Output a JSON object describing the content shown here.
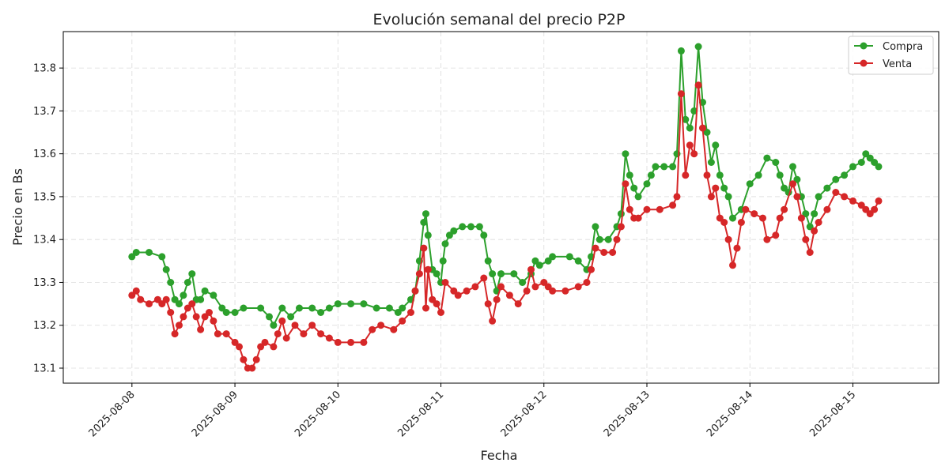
{
  "chart_data": {
    "type": "line",
    "title": "Evolución semanal del precio P2P",
    "xlabel": "Fecha",
    "ylabel": "Precio en Bs",
    "grid": true,
    "legend_position": "top-right",
    "x_range": [
      "2025-08-07 08:00",
      "2025-08-15 20:00"
    ],
    "ylim": [
      13.065,
      13.885
    ],
    "x_ticks": [
      "2025-08-08",
      "2025-08-09",
      "2025-08-10",
      "2025-08-11",
      "2025-08-12",
      "2025-08-13",
      "2025-08-14",
      "2025-08-15"
    ],
    "y_ticks": [
      13.1,
      13.2,
      13.3,
      13.4,
      13.5,
      13.6,
      13.7,
      13.8
    ],
    "series": [
      {
        "name": "Compra",
        "color": "#2ca02c",
        "points": [
          [
            "2025-08-08 00:00",
            13.36
          ],
          [
            "2025-08-08 01:00",
            13.37
          ],
          [
            "2025-08-08 04:00",
            13.37
          ],
          [
            "2025-08-08 07:00",
            13.36
          ],
          [
            "2025-08-08 08:00",
            13.33
          ],
          [
            "2025-08-08 09:00",
            13.3
          ],
          [
            "2025-08-08 10:00",
            13.26
          ],
          [
            "2025-08-08 11:00",
            13.25
          ],
          [
            "2025-08-08 12:00",
            13.27
          ],
          [
            "2025-08-08 13:00",
            13.3
          ],
          [
            "2025-08-08 14:00",
            13.32
          ],
          [
            "2025-08-08 15:00",
            13.26
          ],
          [
            "2025-08-08 16:00",
            13.26
          ],
          [
            "2025-08-08 17:00",
            13.28
          ],
          [
            "2025-08-08 19:00",
            13.27
          ],
          [
            "2025-08-08 21:00",
            13.24
          ],
          [
            "2025-08-08 22:00",
            13.23
          ],
          [
            "2025-08-09 00:00",
            13.23
          ],
          [
            "2025-08-09 02:00",
            13.24
          ],
          [
            "2025-08-09 06:00",
            13.24
          ],
          [
            "2025-08-09 08:00",
            13.22
          ],
          [
            "2025-08-09 09:00",
            13.2
          ],
          [
            "2025-08-09 11:00",
            13.24
          ],
          [
            "2025-08-09 13:00",
            13.22
          ],
          [
            "2025-08-09 15:00",
            13.24
          ],
          [
            "2025-08-09 18:00",
            13.24
          ],
          [
            "2025-08-09 20:00",
            13.23
          ],
          [
            "2025-08-09 22:00",
            13.24
          ],
          [
            "2025-08-10 00:00",
            13.25
          ],
          [
            "2025-08-10 03:00",
            13.25
          ],
          [
            "2025-08-10 06:00",
            13.25
          ],
          [
            "2025-08-10 09:00",
            13.24
          ],
          [
            "2025-08-10 12:00",
            13.24
          ],
          [
            "2025-08-10 14:00",
            13.23
          ],
          [
            "2025-08-10 15:00",
            13.24
          ],
          [
            "2025-08-10 17:00",
            13.26
          ],
          [
            "2025-08-10 18:00",
            13.28
          ],
          [
            "2025-08-10 19:00",
            13.35
          ],
          [
            "2025-08-10 20:00",
            13.44
          ],
          [
            "2025-08-10 20:30",
            13.46
          ],
          [
            "2025-08-10 21:00",
            13.41
          ],
          [
            "2025-08-10 22:00",
            13.33
          ],
          [
            "2025-08-10 23:00",
            13.32
          ],
          [
            "2025-08-11 00:00",
            13.3
          ],
          [
            "2025-08-11 00:30",
            13.35
          ],
          [
            "2025-08-11 01:00",
            13.39
          ],
          [
            "2025-08-11 02:00",
            13.41
          ],
          [
            "2025-08-11 03:00",
            13.42
          ],
          [
            "2025-08-11 05:00",
            13.43
          ],
          [
            "2025-08-11 07:00",
            13.43
          ],
          [
            "2025-08-11 09:00",
            13.43
          ],
          [
            "2025-08-11 10:00",
            13.41
          ],
          [
            "2025-08-11 11:00",
            13.35
          ],
          [
            "2025-08-11 12:00",
            13.32
          ],
          [
            "2025-08-11 13:00",
            13.28
          ],
          [
            "2025-08-11 14:00",
            13.32
          ],
          [
            "2025-08-11 17:00",
            13.32
          ],
          [
            "2025-08-11 19:00",
            13.3
          ],
          [
            "2025-08-11 21:00",
            13.32
          ],
          [
            "2025-08-11 22:00",
            13.35
          ],
          [
            "2025-08-11 23:00",
            13.34
          ],
          [
            "2025-08-12 01:00",
            13.35
          ],
          [
            "2025-08-12 02:00",
            13.36
          ],
          [
            "2025-08-12 06:00",
            13.36
          ],
          [
            "2025-08-12 08:00",
            13.35
          ],
          [
            "2025-08-12 10:00",
            13.33
          ],
          [
            "2025-08-12 11:00",
            13.36
          ],
          [
            "2025-08-12 12:00",
            13.43
          ],
          [
            "2025-08-12 13:00",
            13.4
          ],
          [
            "2025-08-12 15:00",
            13.4
          ],
          [
            "2025-08-12 17:00",
            13.43
          ],
          [
            "2025-08-12 18:00",
            13.46
          ],
          [
            "2025-08-12 19:00",
            13.6
          ],
          [
            "2025-08-12 20:00",
            13.55
          ],
          [
            "2025-08-12 21:00",
            13.52
          ],
          [
            "2025-08-12 22:00",
            13.5
          ],
          [
            "2025-08-13 00:00",
            13.53
          ],
          [
            "2025-08-13 01:00",
            13.55
          ],
          [
            "2025-08-13 02:00",
            13.57
          ],
          [
            "2025-08-13 04:00",
            13.57
          ],
          [
            "2025-08-13 06:00",
            13.57
          ],
          [
            "2025-08-13 07:00",
            13.6
          ],
          [
            "2025-08-13 08:00",
            13.84
          ],
          [
            "2025-08-13 09:00",
            13.68
          ],
          [
            "2025-08-13 10:00",
            13.66
          ],
          [
            "2025-08-13 11:00",
            13.7
          ],
          [
            "2025-08-13 12:00",
            13.85
          ],
          [
            "2025-08-13 13:00",
            13.72
          ],
          [
            "2025-08-13 14:00",
            13.65
          ],
          [
            "2025-08-13 15:00",
            13.58
          ],
          [
            "2025-08-13 16:00",
            13.62
          ],
          [
            "2025-08-13 17:00",
            13.55
          ],
          [
            "2025-08-13 18:00",
            13.52
          ],
          [
            "2025-08-13 19:00",
            13.5
          ],
          [
            "2025-08-13 20:00",
            13.45
          ],
          [
            "2025-08-13 22:00",
            13.47
          ],
          [
            "2025-08-14 00:00",
            13.53
          ],
          [
            "2025-08-14 02:00",
            13.55
          ],
          [
            "2025-08-14 04:00",
            13.59
          ],
          [
            "2025-08-14 06:00",
            13.58
          ],
          [
            "2025-08-14 07:00",
            13.55
          ],
          [
            "2025-08-14 08:00",
            13.52
          ],
          [
            "2025-08-14 09:00",
            13.51
          ],
          [
            "2025-08-14 10:00",
            13.57
          ],
          [
            "2025-08-14 11:00",
            13.54
          ],
          [
            "2025-08-14 12:00",
            13.5
          ],
          [
            "2025-08-14 13:00",
            13.46
          ],
          [
            "2025-08-14 14:00",
            13.43
          ],
          [
            "2025-08-14 15:00",
            13.46
          ],
          [
            "2025-08-14 16:00",
            13.5
          ],
          [
            "2025-08-14 18:00",
            13.52
          ],
          [
            "2025-08-14 20:00",
            13.54
          ],
          [
            "2025-08-14 22:00",
            13.55
          ],
          [
            "2025-08-15 00:00",
            13.57
          ],
          [
            "2025-08-15 02:00",
            13.58
          ],
          [
            "2025-08-15 03:00",
            13.6
          ],
          [
            "2025-08-15 04:00",
            13.59
          ],
          [
            "2025-08-15 05:00",
            13.58
          ],
          [
            "2025-08-15 06:00",
            13.57
          ]
        ]
      },
      {
        "name": "Venta",
        "color": "#d62728",
        "points": [
          [
            "2025-08-08 00:00",
            13.27
          ],
          [
            "2025-08-08 01:00",
            13.28
          ],
          [
            "2025-08-08 02:00",
            13.26
          ],
          [
            "2025-08-08 04:00",
            13.25
          ],
          [
            "2025-08-08 06:00",
            13.26
          ],
          [
            "2025-08-08 07:00",
            13.25
          ],
          [
            "2025-08-08 08:00",
            13.26
          ],
          [
            "2025-08-08 09:00",
            13.23
          ],
          [
            "2025-08-08 10:00",
            13.18
          ],
          [
            "2025-08-08 11:00",
            13.2
          ],
          [
            "2025-08-08 12:00",
            13.22
          ],
          [
            "2025-08-08 13:00",
            13.24
          ],
          [
            "2025-08-08 14:00",
            13.25
          ],
          [
            "2025-08-08 15:00",
            13.22
          ],
          [
            "2025-08-08 16:00",
            13.19
          ],
          [
            "2025-08-08 17:00",
            13.22
          ],
          [
            "2025-08-08 18:00",
            13.23
          ],
          [
            "2025-08-08 19:00",
            13.21
          ],
          [
            "2025-08-08 20:00",
            13.18
          ],
          [
            "2025-08-08 22:00",
            13.18
          ],
          [
            "2025-08-09 00:00",
            13.16
          ],
          [
            "2025-08-09 01:00",
            13.15
          ],
          [
            "2025-08-09 02:00",
            13.12
          ],
          [
            "2025-08-09 03:00",
            13.1
          ],
          [
            "2025-08-09 04:00",
            13.1
          ],
          [
            "2025-08-09 05:00",
            13.12
          ],
          [
            "2025-08-09 06:00",
            13.15
          ],
          [
            "2025-08-09 07:00",
            13.16
          ],
          [
            "2025-08-09 09:00",
            13.15
          ],
          [
            "2025-08-09 10:00",
            13.18
          ],
          [
            "2025-08-09 11:00",
            13.21
          ],
          [
            "2025-08-09 12:00",
            13.17
          ],
          [
            "2025-08-09 14:00",
            13.2
          ],
          [
            "2025-08-09 16:00",
            13.18
          ],
          [
            "2025-08-09 18:00",
            13.2
          ],
          [
            "2025-08-09 20:00",
            13.18
          ],
          [
            "2025-08-09 22:00",
            13.17
          ],
          [
            "2025-08-10 00:00",
            13.16
          ],
          [
            "2025-08-10 03:00",
            13.16
          ],
          [
            "2025-08-10 06:00",
            13.16
          ],
          [
            "2025-08-10 08:00",
            13.19
          ],
          [
            "2025-08-10 10:00",
            13.2
          ],
          [
            "2025-08-10 13:00",
            13.19
          ],
          [
            "2025-08-10 15:00",
            13.21
          ],
          [
            "2025-08-10 17:00",
            13.23
          ],
          [
            "2025-08-10 18:00",
            13.28
          ],
          [
            "2025-08-10 19:00",
            13.32
          ],
          [
            "2025-08-10 20:00",
            13.38
          ],
          [
            "2025-08-10 20:30",
            13.24
          ],
          [
            "2025-08-10 21:00",
            13.33
          ],
          [
            "2025-08-10 22:00",
            13.26
          ],
          [
            "2025-08-10 23:00",
            13.25
          ],
          [
            "2025-08-11 00:00",
            13.23
          ],
          [
            "2025-08-11 01:00",
            13.3
          ],
          [
            "2025-08-11 03:00",
            13.28
          ],
          [
            "2025-08-11 04:00",
            13.27
          ],
          [
            "2025-08-11 06:00",
            13.28
          ],
          [
            "2025-08-11 08:00",
            13.29
          ],
          [
            "2025-08-11 10:00",
            13.31
          ],
          [
            "2025-08-11 11:00",
            13.25
          ],
          [
            "2025-08-11 12:00",
            13.21
          ],
          [
            "2025-08-11 13:00",
            13.26
          ],
          [
            "2025-08-11 14:00",
            13.29
          ],
          [
            "2025-08-11 16:00",
            13.27
          ],
          [
            "2025-08-11 18:00",
            13.25
          ],
          [
            "2025-08-11 20:00",
            13.28
          ],
          [
            "2025-08-11 21:00",
            13.33
          ],
          [
            "2025-08-11 22:00",
            13.29
          ],
          [
            "2025-08-12 00:00",
            13.3
          ],
          [
            "2025-08-12 01:00",
            13.29
          ],
          [
            "2025-08-12 02:00",
            13.28
          ],
          [
            "2025-08-12 05:00",
            13.28
          ],
          [
            "2025-08-12 08:00",
            13.29
          ],
          [
            "2025-08-12 10:00",
            13.3
          ],
          [
            "2025-08-12 11:00",
            13.33
          ],
          [
            "2025-08-12 12:00",
            13.38
          ],
          [
            "2025-08-12 14:00",
            13.37
          ],
          [
            "2025-08-12 16:00",
            13.37
          ],
          [
            "2025-08-12 17:00",
            13.4
          ],
          [
            "2025-08-12 18:00",
            13.43
          ],
          [
            "2025-08-12 19:00",
            13.53
          ],
          [
            "2025-08-12 20:00",
            13.47
          ],
          [
            "2025-08-12 21:00",
            13.45
          ],
          [
            "2025-08-12 22:00",
            13.45
          ],
          [
            "2025-08-13 00:00",
            13.47
          ],
          [
            "2025-08-13 03:00",
            13.47
          ],
          [
            "2025-08-13 06:00",
            13.48
          ],
          [
            "2025-08-13 07:00",
            13.5
          ],
          [
            "2025-08-13 08:00",
            13.74
          ],
          [
            "2025-08-13 09:00",
            13.55
          ],
          [
            "2025-08-13 10:00",
            13.62
          ],
          [
            "2025-08-13 11:00",
            13.6
          ],
          [
            "2025-08-13 12:00",
            13.76
          ],
          [
            "2025-08-13 13:00",
            13.66
          ],
          [
            "2025-08-13 14:00",
            13.55
          ],
          [
            "2025-08-13 15:00",
            13.5
          ],
          [
            "2025-08-13 16:00",
            13.52
          ],
          [
            "2025-08-13 17:00",
            13.45
          ],
          [
            "2025-08-13 18:00",
            13.44
          ],
          [
            "2025-08-13 19:00",
            13.4
          ],
          [
            "2025-08-13 20:00",
            13.34
          ],
          [
            "2025-08-13 21:00",
            13.38
          ],
          [
            "2025-08-13 22:00",
            13.44
          ],
          [
            "2025-08-13 23:00",
            13.47
          ],
          [
            "2025-08-14 01:00",
            13.46
          ],
          [
            "2025-08-14 03:00",
            13.45
          ],
          [
            "2025-08-14 04:00",
            13.4
          ],
          [
            "2025-08-14 06:00",
            13.41
          ],
          [
            "2025-08-14 07:00",
            13.45
          ],
          [
            "2025-08-14 08:00",
            13.47
          ],
          [
            "2025-08-14 10:00",
            13.53
          ],
          [
            "2025-08-14 11:00",
            13.5
          ],
          [
            "2025-08-14 12:00",
            13.45
          ],
          [
            "2025-08-14 13:00",
            13.4
          ],
          [
            "2025-08-14 14:00",
            13.37
          ],
          [
            "2025-08-14 15:00",
            13.42
          ],
          [
            "2025-08-14 16:00",
            13.44
          ],
          [
            "2025-08-14 18:00",
            13.47
          ],
          [
            "2025-08-14 20:00",
            13.51
          ],
          [
            "2025-08-14 22:00",
            13.5
          ],
          [
            "2025-08-15 00:00",
            13.49
          ],
          [
            "2025-08-15 02:00",
            13.48
          ],
          [
            "2025-08-15 03:00",
            13.47
          ],
          [
            "2025-08-15 04:00",
            13.46
          ],
          [
            "2025-08-15 05:00",
            13.47
          ],
          [
            "2025-08-15 06:00",
            13.49
          ]
        ]
      }
    ]
  }
}
